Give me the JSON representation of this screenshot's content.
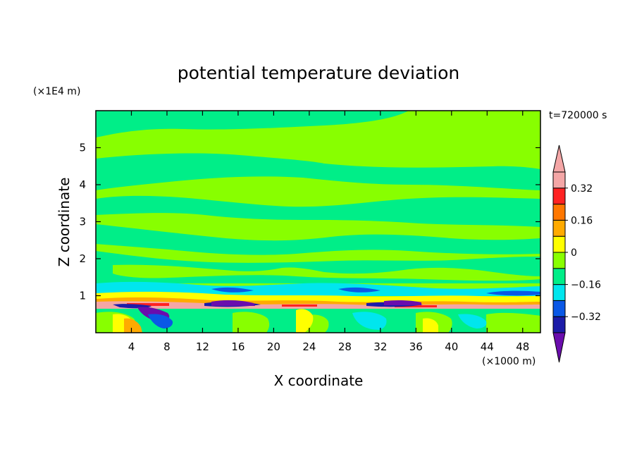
{
  "chart_data": {
    "type": "heatmap",
    "title": "potential temperature deviation",
    "xlabel": "X coordinate",
    "ylabel": "Z coordinate",
    "x_unit_label": "(×1000 m)",
    "y_unit_label": "(×1E4 m)",
    "time_label": "t=720000 s",
    "xlim": [
      0,
      50
    ],
    "ylim": [
      0,
      6
    ],
    "x_ticks": [
      4,
      8,
      12,
      16,
      20,
      24,
      28,
      32,
      36,
      40,
      44,
      48
    ],
    "y_ticks": [
      1,
      2,
      3,
      4,
      5
    ],
    "x_tick_labels": [
      "4",
      "8",
      "12",
      "16",
      "20",
      "24",
      "28",
      "32",
      "36",
      "40",
      "44",
      "48"
    ],
    "y_tick_labels": [
      "1",
      "2",
      "3",
      "4",
      "5"
    ],
    "colorbar": {
      "levels": [
        -0.4,
        -0.32,
        -0.24,
        -0.16,
        -0.08,
        0,
        0.08,
        0.16,
        0.24,
        0.32,
        0.4
      ],
      "colors": [
        "#6a0dad",
        "#1c1ca8",
        "#0a58e6",
        "#00e6ee",
        "#00ee88",
        "#88ff00",
        "#ffff00",
        "#ffaa00",
        "#ff7700",
        "#ff2222",
        "#f4a6a6"
      ],
      "labeled_ticks": [
        0.32,
        0.16,
        0,
        -0.16,
        -0.32
      ],
      "tick_labels": [
        "0.32",
        "0.16",
        "0",
        "−0.16",
        "−0.32"
      ],
      "extend": "both"
    }
  }
}
